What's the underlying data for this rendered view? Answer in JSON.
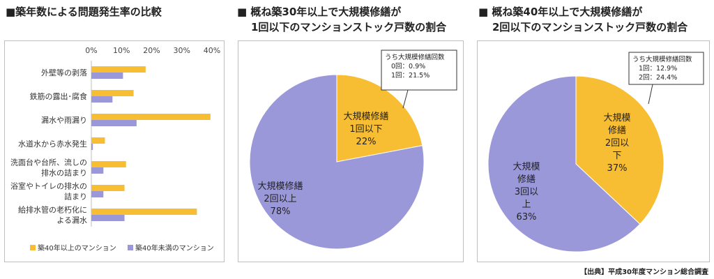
{
  "titles": {
    "chart1": "■築年数による問題発生率の比較",
    "chart2_line1": "■ 概ね築30年以上で大規模修繕が",
    "chart2_line2": "1回以下のマンションストック戸数の割合",
    "chart3_line1": "■ 概ね築40年以上で大規模修繕が",
    "chart3_line2": "2回以下のマンションストック戸数の割合"
  },
  "source": "【出典】平成30年度マンション総合調査",
  "colors": {
    "over40": "#f7bd33",
    "under40": "#9b98da",
    "border": "#333333"
  },
  "chart_data": [
    {
      "type": "bar",
      "orientation": "horizontal",
      "categories": [
        "外壁等の剥落",
        "鉄筋の露出･腐食",
        "漏水や雨漏り",
        "水道水から赤水発生",
        "洗面台や台所、流しの排水の詰まり",
        "浴室やトイレの排水の詰まり",
        "給排水管の老朽化による漏水"
      ],
      "category_lines": [
        [
          "外壁等の剥落"
        ],
        [
          "鉄筋の露出･腐食"
        ],
        [
          "漏水や雨漏り"
        ],
        [
          "水道水から赤水発生"
        ],
        [
          "洗面台や台所、流しの",
          "排水の詰まり"
        ],
        [
          "浴室やトイレの排水の",
          "詰まり"
        ],
        [
          "給排水管の老朽化に",
          "よる漏水"
        ]
      ],
      "series": [
        {
          "name": "築40年以上のマンション",
          "values": [
            18,
            14,
            39.5,
            4.5,
            11.5,
            11,
            35
          ]
        },
        {
          "name": "築40年未満のマンション",
          "values": [
            10.5,
            7,
            15,
            0.5,
            4,
            4,
            11
          ]
        }
      ],
      "xlim": [
        0,
        40
      ],
      "xticks": [
        "0%",
        "10%",
        "20%",
        "30%",
        "40%"
      ],
      "legend": "bottom"
    },
    {
      "type": "pie",
      "slices": [
        {
          "lines": [
            "大規模修繕",
            "1回以下",
            "22%"
          ],
          "value": 22,
          "color": "#f7bd33"
        },
        {
          "lines": [
            "大規模修繕",
            "2回以上",
            "78%"
          ],
          "value": 78,
          "color": "#9b98da"
        }
      ],
      "callout": [
        "うち大規模修繕回数",
        "0回：0.9%",
        "1回：21.5%"
      ]
    },
    {
      "type": "pie",
      "slices": [
        {
          "lines": [
            "大規模",
            "修繕",
            "2回以",
            "下",
            "37%"
          ],
          "value": 37,
          "color": "#f7bd33"
        },
        {
          "lines": [
            "大規模",
            "修繕",
            "3回以",
            "上",
            "63%"
          ],
          "value": 63,
          "color": "#9b98da"
        }
      ],
      "callout": [
        "うち大規模修繕回数",
        "1回：12.9%",
        "2回：24.4%"
      ]
    }
  ]
}
